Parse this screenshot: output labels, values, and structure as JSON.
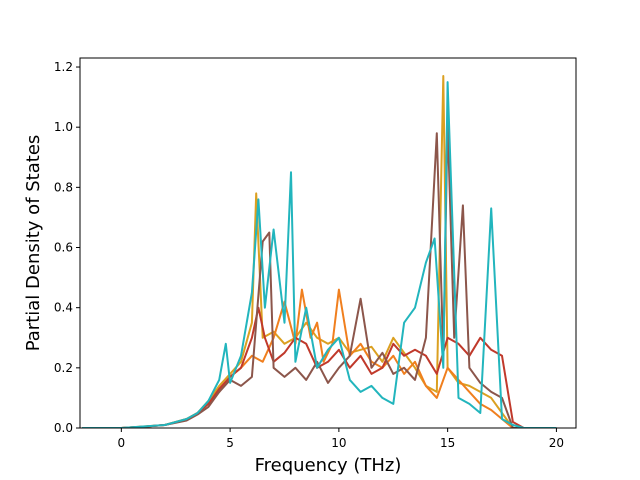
{
  "chart_data": {
    "type": "line",
    "title": "",
    "xlabel": "Frequency (THz)",
    "ylabel": "Partial Density of States",
    "xlim": [
      -1.9,
      20.9
    ],
    "ylim": [
      0.0,
      1.23
    ],
    "xticks": [
      0,
      5,
      10,
      15,
      20
    ],
    "xtick_labels": [
      "0",
      "5",
      "10",
      "15",
      "20"
    ],
    "yticks": [
      0.0,
      0.2,
      0.4,
      0.6,
      0.8,
      1.0,
      1.2
    ],
    "ytick_labels": [
      "0.0",
      "0.2",
      "0.4",
      "0.6",
      "0.8",
      "1.0",
      "1.2"
    ],
    "grid": false,
    "legend": "none",
    "series": [
      {
        "color": "#dba021",
        "x": [
          -1.8,
          0,
          1,
          2,
          3,
          3.5,
          4,
          4.5,
          5,
          5.5,
          6,
          6.2,
          6.5,
          7,
          7.5,
          8,
          8.5,
          9,
          9.5,
          10,
          10.5,
          11,
          11.5,
          12,
          12.5,
          13,
          13.5,
          14,
          14.5,
          14.8,
          15,
          15.5,
          16,
          16.5,
          17,
          17.5,
          18,
          18.5,
          20
        ],
        "y": [
          0,
          0,
          0.005,
          0.01,
          0.03,
          0.05,
          0.09,
          0.14,
          0.18,
          0.22,
          0.35,
          0.78,
          0.3,
          0.32,
          0.28,
          0.3,
          0.35,
          0.3,
          0.28,
          0.3,
          0.25,
          0.26,
          0.27,
          0.22,
          0.3,
          0.25,
          0.2,
          0.14,
          0.12,
          1.17,
          0.2,
          0.15,
          0.14,
          0.12,
          0.1,
          0.05,
          0.0,
          0.0,
          0.0
        ]
      },
      {
        "color": "#f07f1e",
        "x": [
          -1.8,
          0,
          1,
          2,
          3,
          3.5,
          4,
          4.5,
          5,
          5.5,
          6,
          6.5,
          7,
          7.5,
          8,
          8.3,
          8.7,
          9,
          9.3,
          9.7,
          10,
          10.5,
          11,
          11.5,
          12,
          12.5,
          13,
          13.5,
          14,
          14.5,
          15,
          15.5,
          16,
          16.5,
          17,
          17.5,
          18,
          18.5,
          20
        ],
        "y": [
          0,
          0,
          0.004,
          0.01,
          0.03,
          0.05,
          0.08,
          0.12,
          0.17,
          0.2,
          0.24,
          0.22,
          0.3,
          0.42,
          0.28,
          0.46,
          0.3,
          0.35,
          0.22,
          0.28,
          0.46,
          0.24,
          0.28,
          0.22,
          0.2,
          0.24,
          0.18,
          0.22,
          0.14,
          0.1,
          0.2,
          0.16,
          0.12,
          0.08,
          0.06,
          0.03,
          0.0,
          0.0,
          0.0
        ]
      },
      {
        "color": "#c0392b",
        "x": [
          -1.8,
          0,
          1,
          2,
          3,
          3.5,
          4,
          4.5,
          5,
          5.5,
          6,
          6.3,
          6.6,
          7,
          7.5,
          8,
          8.5,
          9,
          9.5,
          10,
          10.5,
          11,
          11.5,
          12,
          12.5,
          13,
          13.5,
          14,
          14.5,
          15,
          15.5,
          16,
          16.5,
          17,
          17.5,
          18,
          18.5,
          20
        ],
        "y": [
          0,
          0,
          0.004,
          0.01,
          0.028,
          0.05,
          0.08,
          0.13,
          0.17,
          0.2,
          0.3,
          0.4,
          0.3,
          0.22,
          0.25,
          0.3,
          0.28,
          0.2,
          0.22,
          0.26,
          0.2,
          0.24,
          0.18,
          0.2,
          0.28,
          0.24,
          0.26,
          0.24,
          0.18,
          0.3,
          0.28,
          0.24,
          0.3,
          0.26,
          0.24,
          0.02,
          0.0,
          0.0
        ]
      },
      {
        "color": "#8c564b",
        "x": [
          -1.8,
          0,
          1,
          2,
          3,
          3.5,
          4,
          4.5,
          5,
          5.5,
          6,
          6.5,
          6.8,
          7,
          7.5,
          8,
          8.5,
          9,
          9.5,
          10,
          10.5,
          11,
          11.5,
          12,
          12.5,
          13,
          13.5,
          14,
          14.5,
          14.8,
          15,
          15.3,
          15.7,
          16,
          16.5,
          17,
          17.5,
          18,
          18.5,
          20
        ],
        "y": [
          0,
          0,
          0.004,
          0.01,
          0.025,
          0.045,
          0.07,
          0.12,
          0.16,
          0.14,
          0.17,
          0.62,
          0.65,
          0.2,
          0.17,
          0.2,
          0.16,
          0.22,
          0.15,
          0.2,
          0.24,
          0.43,
          0.2,
          0.25,
          0.18,
          0.2,
          0.16,
          0.3,
          0.98,
          0.24,
          1.02,
          0.3,
          0.74,
          0.2,
          0.15,
          0.12,
          0.1,
          0.0,
          0.0,
          0.0
        ]
      },
      {
        "color": "#22b5bd",
        "x": [
          -1.8,
          0,
          1,
          2,
          3,
          3.5,
          4,
          4.5,
          4.8,
          5,
          5.5,
          6,
          6.3,
          6.6,
          7,
          7.5,
          7.8,
          8,
          8.5,
          9,
          9.5,
          10,
          10.5,
          11,
          11.5,
          12,
          12.5,
          13,
          13.5,
          14,
          14.4,
          14.8,
          15,
          15.5,
          16,
          16.5,
          17,
          17.5,
          18,
          18.5,
          20
        ],
        "y": [
          0,
          0,
          0.005,
          0.01,
          0.03,
          0.05,
          0.09,
          0.16,
          0.28,
          0.15,
          0.24,
          0.45,
          0.76,
          0.4,
          0.66,
          0.35,
          0.85,
          0.22,
          0.4,
          0.2,
          0.26,
          0.3,
          0.16,
          0.12,
          0.14,
          0.1,
          0.08,
          0.35,
          0.4,
          0.55,
          0.63,
          0.2,
          1.15,
          0.1,
          0.08,
          0.05,
          0.73,
          0.03,
          0.01,
          0.0,
          0.0
        ]
      }
    ]
  }
}
